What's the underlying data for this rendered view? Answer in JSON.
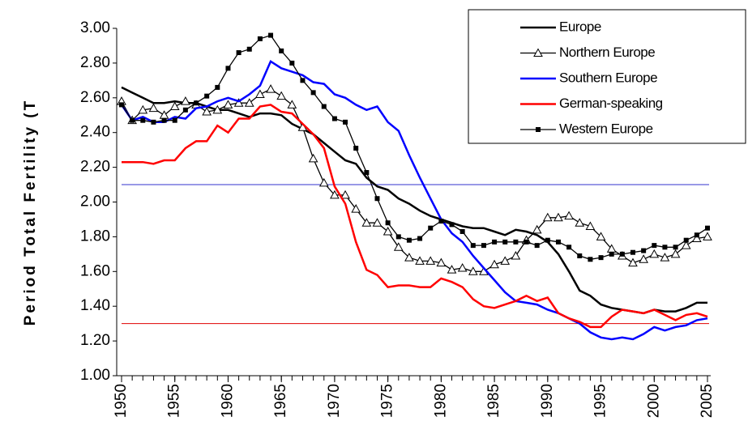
{
  "chart_data": {
    "type": "line",
    "y_label": "Period Total Fertility (T",
    "x": [
      1950,
      1951,
      1952,
      1953,
      1954,
      1955,
      1956,
      1957,
      1958,
      1959,
      1960,
      1961,
      1962,
      1963,
      1964,
      1965,
      1966,
      1967,
      1968,
      1969,
      1970,
      1971,
      1972,
      1973,
      1974,
      1975,
      1976,
      1977,
      1978,
      1979,
      1980,
      1981,
      1982,
      1983,
      1984,
      1985,
      1986,
      1987,
      1988,
      1989,
      1990,
      1991,
      1992,
      1993,
      1994,
      1995,
      1996,
      1997,
      1998,
      1999,
      2000,
      2001,
      2002,
      2003,
      2004,
      2005
    ],
    "xlim": [
      1950,
      2005
    ],
    "xticks": [
      1950,
      1955,
      1960,
      1965,
      1970,
      1975,
      1980,
      1985,
      1990,
      1995,
      2000,
      2005
    ],
    "ylim": [
      1.0,
      3.0
    ],
    "yticks": [
      {
        "value": 1.0,
        "label": "1.00"
      },
      {
        "value": 1.2,
        "label": "1.20"
      },
      {
        "value": 1.4,
        "label": "1.40"
      },
      {
        "value": 1.6,
        "label": "1.60"
      },
      {
        "value": 1.8,
        "label": "1.80"
      },
      {
        "value": 2.0,
        "label": "2.00"
      },
      {
        "value": 2.2,
        "label": "2.20"
      },
      {
        "value": 2.4,
        "label": "2.40"
      },
      {
        "value": 2.6,
        "label": "2.60"
      },
      {
        "value": 2.8,
        "label": "2.80"
      },
      {
        "value": 3.0,
        "label": "3.00"
      }
    ],
    "reference_lines": [
      {
        "value": 2.1,
        "color": "#3333cc"
      },
      {
        "value": 1.3,
        "color": "#e00000"
      }
    ],
    "legend": "top-right",
    "series": [
      {
        "name": "Europe",
        "color": "#000000",
        "marker": "none",
        "values": [
          2.66,
          2.63,
          2.6,
          2.57,
          2.57,
          2.58,
          2.57,
          2.57,
          2.55,
          2.53,
          2.53,
          2.51,
          2.49,
          2.51,
          2.51,
          2.5,
          2.45,
          2.42,
          2.39,
          2.34,
          2.29,
          2.24,
          2.22,
          2.14,
          2.09,
          2.07,
          2.02,
          1.99,
          1.95,
          1.92,
          1.9,
          1.88,
          1.86,
          1.85,
          1.85,
          1.83,
          1.81,
          1.84,
          1.83,
          1.81,
          1.77,
          1.7,
          1.6,
          1.49,
          1.46,
          1.41,
          1.39,
          1.38,
          1.37,
          1.36,
          1.38,
          1.37,
          1.37,
          1.39,
          1.42,
          1.42
        ]
      },
      {
        "name": "Northern Europe",
        "color": "#000000",
        "marker": "triangle",
        "values": [
          2.58,
          2.47,
          2.53,
          2.54,
          2.5,
          2.55,
          2.58,
          2.56,
          2.52,
          2.53,
          2.56,
          2.57,
          2.57,
          2.62,
          2.65,
          2.61,
          2.56,
          2.43,
          2.25,
          2.11,
          2.04,
          2.04,
          1.96,
          1.88,
          1.88,
          1.83,
          1.74,
          1.68,
          1.66,
          1.66,
          1.65,
          1.61,
          1.62,
          1.6,
          1.6,
          1.64,
          1.66,
          1.69,
          1.78,
          1.84,
          1.91,
          1.91,
          1.92,
          1.88,
          1.86,
          1.8,
          1.73,
          1.69,
          1.65,
          1.67,
          1.7,
          1.68,
          1.7,
          1.75,
          1.79,
          1.8
        ]
      },
      {
        "name": "Southern Europe",
        "color": "#0000ff",
        "marker": "none",
        "values": [
          2.56,
          2.47,
          2.49,
          2.46,
          2.46,
          2.49,
          2.48,
          2.54,
          2.55,
          2.58,
          2.6,
          2.58,
          2.62,
          2.67,
          2.81,
          2.77,
          2.75,
          2.73,
          2.69,
          2.68,
          2.62,
          2.6,
          2.56,
          2.53,
          2.55,
          2.46,
          2.41,
          2.27,
          2.14,
          2.02,
          1.9,
          1.82,
          1.77,
          1.69,
          1.62,
          1.55,
          1.48,
          1.43,
          1.42,
          1.41,
          1.38,
          1.36,
          1.33,
          1.3,
          1.25,
          1.22,
          1.21,
          1.22,
          1.21,
          1.24,
          1.28,
          1.26,
          1.28,
          1.29,
          1.32,
          1.33
        ]
      },
      {
        "name": "German-speaking",
        "color": "#ff0000",
        "marker": "none",
        "values": [
          2.23,
          2.23,
          2.23,
          2.22,
          2.24,
          2.24,
          2.31,
          2.35,
          2.35,
          2.44,
          2.4,
          2.48,
          2.48,
          2.55,
          2.56,
          2.52,
          2.51,
          2.45,
          2.39,
          2.31,
          2.09,
          1.99,
          1.77,
          1.61,
          1.58,
          1.51,
          1.52,
          1.52,
          1.51,
          1.51,
          1.56,
          1.54,
          1.51,
          1.44,
          1.4,
          1.39,
          1.41,
          1.43,
          1.46,
          1.43,
          1.45,
          1.36,
          1.33,
          1.31,
          1.28,
          1.28,
          1.34,
          1.38,
          1.37,
          1.36,
          1.38,
          1.35,
          1.32,
          1.35,
          1.36,
          1.34
        ]
      },
      {
        "name": "Western Europe",
        "color": "#000000",
        "marker": "square",
        "values": [
          2.56,
          2.47,
          2.47,
          2.46,
          2.47,
          2.47,
          2.53,
          2.57,
          2.61,
          2.66,
          2.77,
          2.86,
          2.88,
          2.94,
          2.96,
          2.87,
          2.8,
          2.7,
          2.63,
          2.55,
          2.48,
          2.46,
          2.31,
          2.17,
          2.02,
          1.88,
          1.8,
          1.78,
          1.79,
          1.85,
          1.89,
          1.87,
          1.83,
          1.75,
          1.75,
          1.77,
          1.77,
          1.77,
          1.77,
          1.75,
          1.78,
          1.77,
          1.74,
          1.69,
          1.67,
          1.68,
          1.7,
          1.7,
          1.71,
          1.72,
          1.75,
          1.74,
          1.74,
          1.78,
          1.81,
          1.85
        ]
      }
    ]
  }
}
